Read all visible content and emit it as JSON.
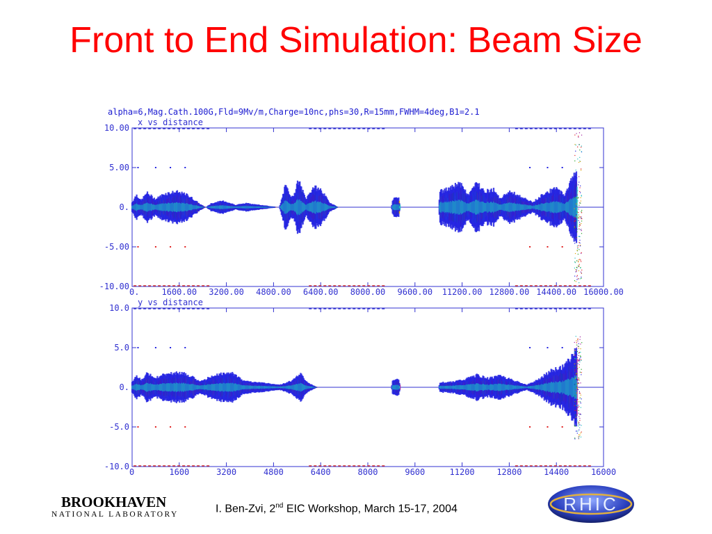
{
  "slide": {
    "title": "Front to End Simulation: Beam Size",
    "run_params": "alpha=6,Mag.Cath.100G,Fld=9Mv/m,Charge=10nc,phs=30,R=15mm,FWHM=4deg,B1=2.1",
    "footer": {
      "author": "I. Ben-Zvi, 2",
      "sup": "nd",
      "rest": " EIC Workshop, March 15-17, 2004"
    },
    "logos": {
      "bnl_top": "BROOKHAVEN",
      "bnl_bottom": "NATIONAL LABORATORY",
      "rhic": "RHIC"
    }
  },
  "chart_data": [
    {
      "type": "scatter",
      "title": "x vs distance",
      "x_range": [
        0,
        16000
      ],
      "y_range": [
        -10,
        10
      ],
      "x_ticks": [
        0,
        1600,
        3200,
        4800,
        6400,
        8000,
        9600,
        11200,
        12800,
        14400,
        16000
      ],
      "x_tick_labels": [
        "0.",
        "1600.00",
        "3200.00",
        "4800.00",
        "6400.00",
        "8000.00",
        "9600.00",
        "11200.00",
        "12800.00",
        "14400.00",
        "16000.00"
      ],
      "y_ticks": [
        10,
        5,
        0,
        -5,
        -10
      ],
      "y_tick_labels": [
        "10.00",
        "5.00",
        "0.",
        "-5.00",
        "-10.00"
      ],
      "series_colors": [
        "#2020e0",
        "#20c0c0",
        "#e0a000",
        "#e02020",
        "#20a020",
        "#a020a0"
      ],
      "envelope": [
        {
          "x": 0,
          "a": 0.6
        },
        {
          "x": 150,
          "a": 1.6
        },
        {
          "x": 300,
          "a": 0.8
        },
        {
          "x": 500,
          "a": 1.8
        },
        {
          "x": 800,
          "a": 1.0
        },
        {
          "x": 1100,
          "a": 1.7
        },
        {
          "x": 1500,
          "a": 1.9
        },
        {
          "x": 1900,
          "a": 1.5
        },
        {
          "x": 2300,
          "a": 0.4
        },
        {
          "x": 2500,
          "a": 0.0
        },
        {
          "x": 2700,
          "a": 0.5
        },
        {
          "x": 3100,
          "a": 0.8
        },
        {
          "x": 3500,
          "a": 0.3
        },
        {
          "x": 3900,
          "a": 0.5
        },
        {
          "x": 4300,
          "a": 0.3
        },
        {
          "x": 5000,
          "a": 0.0
        },
        {
          "x": 5200,
          "a": 2.6
        },
        {
          "x": 5450,
          "a": 1.2
        },
        {
          "x": 5650,
          "a": 3.3
        },
        {
          "x": 5900,
          "a": 1.0
        },
        {
          "x": 6150,
          "a": 2.5
        },
        {
          "x": 6400,
          "a": 2.2
        },
        {
          "x": 6700,
          "a": 0.6
        },
        {
          "x": 7000,
          "a": 0.0
        },
        {
          "x": 8800,
          "a": 0.0
        },
        {
          "x": 8850,
          "a": 1.1
        },
        {
          "x": 9050,
          "a": 1.1
        },
        {
          "x": 9100,
          "a": 0.0
        },
        {
          "x": 10400,
          "a": 0.0
        },
        {
          "x": 10450,
          "a": 2.0
        },
        {
          "x": 10800,
          "a": 2.3
        },
        {
          "x": 11100,
          "a": 3.1
        },
        {
          "x": 11400,
          "a": 1.5
        },
        {
          "x": 11700,
          "a": 3.0
        },
        {
          "x": 12000,
          "a": 2.0
        },
        {
          "x": 12300,
          "a": 2.2
        },
        {
          "x": 12500,
          "a": 1.0
        },
        {
          "x": 12800,
          "a": 2.0
        },
        {
          "x": 13200,
          "a": 1.3
        },
        {
          "x": 13600,
          "a": 0.6
        },
        {
          "x": 14000,
          "a": 1.8
        },
        {
          "x": 14400,
          "a": 2.3
        },
        {
          "x": 14700,
          "a": 1.5
        },
        {
          "x": 14900,
          "a": 3.5
        },
        {
          "x": 15100,
          "a": 4.5
        }
      ],
      "dotted_rows": [
        5,
        -5
      ],
      "dotted_x": [
        200,
        800,
        1300,
        1800,
        13500,
        14100,
        14600
      ]
    },
    {
      "type": "scatter",
      "title": "y vs distance",
      "x_range": [
        0,
        16000
      ],
      "y_range": [
        -10,
        10
      ],
      "x_ticks": [
        0,
        1600,
        3200,
        4800,
        6400,
        8000,
        9600,
        11200,
        12800,
        14400,
        16000
      ],
      "x_tick_labels": [
        "0",
        "1600",
        "3200",
        "4800",
        "6400",
        "8000",
        "9600",
        "11200",
        "12800",
        "14400",
        "16000"
      ],
      "y_ticks": [
        10,
        5,
        0,
        -5,
        -10
      ],
      "y_tick_labels": [
        "10.0",
        "5.0",
        "0.",
        "-5.0",
        "-10.0"
      ],
      "series_colors": [
        "#2020e0",
        "#20c0c0",
        "#e0a000",
        "#e02020",
        "#20a020",
        "#a020a0"
      ],
      "envelope": [
        {
          "x": 0,
          "a": 0.6
        },
        {
          "x": 150,
          "a": 1.5
        },
        {
          "x": 300,
          "a": 0.9
        },
        {
          "x": 500,
          "a": 1.7
        },
        {
          "x": 800,
          "a": 1.2
        },
        {
          "x": 1100,
          "a": 1.6
        },
        {
          "x": 1500,
          "a": 1.8
        },
        {
          "x": 1900,
          "a": 1.6
        },
        {
          "x": 2300,
          "a": 0.7
        },
        {
          "x": 2600,
          "a": 1.2
        },
        {
          "x": 3000,
          "a": 1.7
        },
        {
          "x": 3400,
          "a": 1.8
        },
        {
          "x": 3800,
          "a": 0.8
        },
        {
          "x": 4200,
          "a": 0.6
        },
        {
          "x": 4600,
          "a": 0.5
        },
        {
          "x": 5000,
          "a": 0.3
        },
        {
          "x": 5400,
          "a": 0.8
        },
        {
          "x": 5700,
          "a": 1.7
        },
        {
          "x": 6000,
          "a": 0.5
        },
        {
          "x": 6300,
          "a": 0.0
        },
        {
          "x": 8800,
          "a": 0.0
        },
        {
          "x": 8850,
          "a": 1.0
        },
        {
          "x": 9050,
          "a": 1.0
        },
        {
          "x": 9100,
          "a": 0.0
        },
        {
          "x": 10400,
          "a": 0.0
        },
        {
          "x": 10450,
          "a": 0.6
        },
        {
          "x": 10900,
          "a": 0.7
        },
        {
          "x": 11300,
          "a": 1.0
        },
        {
          "x": 11700,
          "a": 1.5
        },
        {
          "x": 12100,
          "a": 1.1
        },
        {
          "x": 12500,
          "a": 1.5
        },
        {
          "x": 13000,
          "a": 0.8
        },
        {
          "x": 13400,
          "a": 0.3
        },
        {
          "x": 13800,
          "a": 1.0
        },
        {
          "x": 14200,
          "a": 2.0
        },
        {
          "x": 14600,
          "a": 2.5
        },
        {
          "x": 14900,
          "a": 3.5
        },
        {
          "x": 15100,
          "a": 5.5
        }
      ],
      "dotted_rows": [
        5,
        -5
      ],
      "dotted_x": [
        200,
        800,
        1300,
        1800,
        13500,
        14100,
        14600
      ]
    }
  ]
}
